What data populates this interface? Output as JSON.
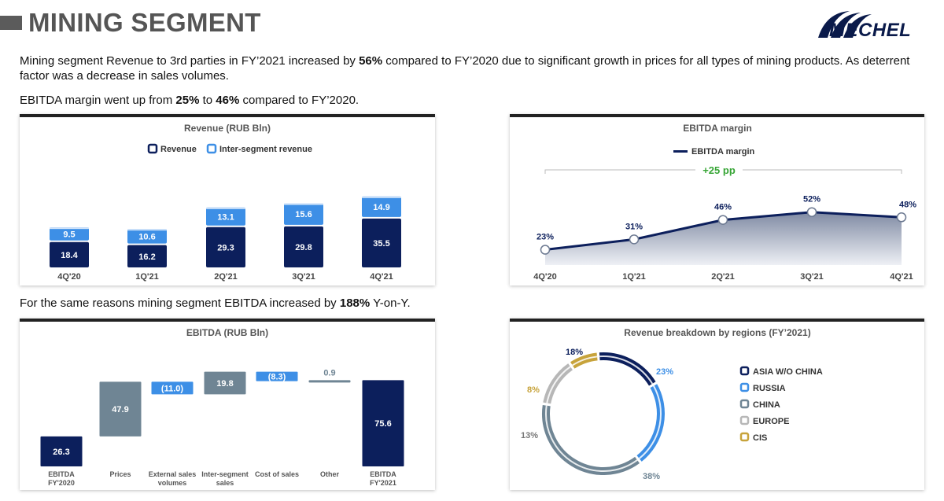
{
  "header": {
    "title": "MINING SEGMENT",
    "logo_text": "MECHEL"
  },
  "intro": {
    "p1": {
      "a": "Mining segment Revenue to 3rd parties in FY’2021 increased by ",
      "b": "56%",
      "c": " compared to FY’2020 due to significant growth in prices for all types of mining products. As deterrent factor was a decrease in sales volumes."
    },
    "p2": {
      "a": "EBITDA margin went up from ",
      "b": "25%",
      "c": " to ",
      "d": "46%",
      "e": " compared to FY’2020."
    },
    "p3": {
      "a": "For the same reasons mining segment EBITDA increased by ",
      "b": "188%",
      "c": " Y-on-Y."
    }
  },
  "colors": {
    "navy": "#0c1f5c",
    "light_blue": "#3d8fe6",
    "slate": "#6f8594",
    "green": "#36a535",
    "gold": "#c7a33b",
    "europe_grey": "#b7b7b7"
  },
  "chart_data": [
    {
      "type": "bar",
      "title": "Revenue (RUB Bln)",
      "stacked": true,
      "categories": [
        "4Q'20",
        "1Q'21",
        "2Q'21",
        "3Q'21",
        "4Q'21"
      ],
      "series": [
        {
          "name": "Revenue",
          "values": [
            18.4,
            16.2,
            29.3,
            29.8,
            35.5
          ],
          "color": "#0c1f5c"
        },
        {
          "name": "Inter-segment revenue",
          "values": [
            9.5,
            10.6,
            13.1,
            15.6,
            14.9
          ],
          "color": "#3d8fe6"
        }
      ],
      "legend": "top-center",
      "grid": false
    },
    {
      "type": "area",
      "title": "EBITDA margin",
      "categories": [
        "4Q'20",
        "1Q'21",
        "2Q'21",
        "3Q'21",
        "4Q'21"
      ],
      "series": [
        {
          "name": "EBITDA margin",
          "values": [
            23,
            31,
            46,
            52,
            48
          ],
          "labels": [
            "23%",
            "31%",
            "46%",
            "52%",
            "48%"
          ],
          "color": "#0c1f5c"
        }
      ],
      "annotation": "+25 pp",
      "legend": "top-right",
      "grid": false
    },
    {
      "type": "bar",
      "subtype": "waterfall",
      "title": "EBITDA (RUB Bln)",
      "categories": [
        "EBITDA FY'2020",
        "Prices",
        "External sales volumes",
        "Inter-segment sales",
        "Cost of sales",
        "Other",
        "EBITDA FY'2021"
      ],
      "category_lines": [
        [
          "EBITDA",
          "FY'2020"
        ],
        [
          "Prices"
        ],
        [
          "External sales",
          "volumes"
        ],
        [
          "Inter-segment",
          "sales"
        ],
        [
          "Cost of sales"
        ],
        [
          "Other"
        ],
        [
          "EBITDA",
          "FY'2021"
        ]
      ],
      "values": [
        26.3,
        47.9,
        -11.0,
        19.8,
        -8.3,
        0.9,
        75.6
      ],
      "labels": [
        "26.3",
        "47.9",
        "(11.0)",
        "19.8",
        "(8.3)",
        "0.9",
        "75.6"
      ],
      "kinds": [
        "total",
        "delta",
        "delta",
        "delta",
        "delta",
        "delta",
        "total"
      ],
      "grid": false
    },
    {
      "type": "pie",
      "donut": true,
      "title": "Revenue breakdown by regions (FY’2021)",
      "slices": [
        {
          "name": "ASIA W/O CHINA",
          "value": 18,
          "label": "18%",
          "color": "#0c1f5c"
        },
        {
          "name": "RUSSIA",
          "value": 23,
          "label": "23%",
          "color": "#3d8fe6"
        },
        {
          "name": "CHINA",
          "value": 38,
          "label": "38%",
          "color": "#6f8594"
        },
        {
          "name": "EUROPE",
          "value": 13,
          "label": "13%",
          "color": "#b7b7b7"
        },
        {
          "name": "CIS",
          "value": 8,
          "label": "8%",
          "color": "#c7a33b"
        }
      ],
      "legend": "right"
    }
  ]
}
